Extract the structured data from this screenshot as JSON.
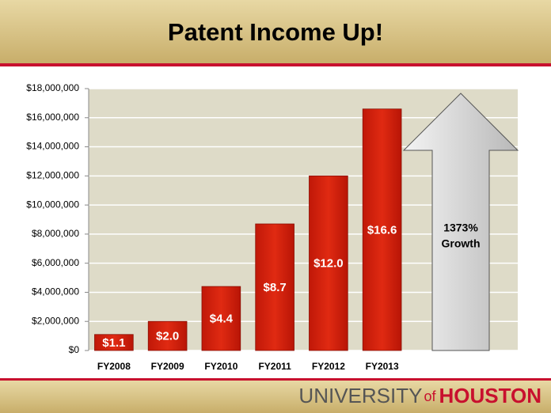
{
  "chart_data": {
    "type": "bar",
    "title": "Patent Income Up!",
    "categories": [
      "FY2008",
      "FY2009",
      "FY2010",
      "FY2011",
      "FY2012",
      "FY2013"
    ],
    "values": [
      1100000,
      2000000,
      4400000,
      8700000,
      12000000,
      16600000
    ],
    "value_labels": [
      "$1.1",
      "$2.0",
      "$4.4",
      "$8.7",
      "$12.0",
      "$16.6"
    ],
    "color": "#d42010",
    "ylim": [
      0,
      18000000
    ],
    "yticks": [
      {
        "value": 0,
        "label": "$0"
      },
      {
        "value": 2000000,
        "label": "$2,000,000"
      },
      {
        "value": 4000000,
        "label": "$4,000,000"
      },
      {
        "value": 6000000,
        "label": "$6,000,000"
      },
      {
        "value": 8000000,
        "label": "$8,000,000"
      },
      {
        "value": 10000000,
        "label": "$10,000,000"
      },
      {
        "value": 12000000,
        "label": "$12,000,000"
      },
      {
        "value": 14000000,
        "label": "$14,000,000"
      },
      {
        "value": 16000000,
        "label": "$16,000,000"
      },
      {
        "value": 18000000,
        "label": "$18,000,000"
      }
    ],
    "grid": true,
    "annotation": [
      "1373%",
      "Growth"
    ]
  },
  "footer": {
    "logo": [
      "UNIVERSITY",
      "of",
      "HOUSTON"
    ]
  }
}
